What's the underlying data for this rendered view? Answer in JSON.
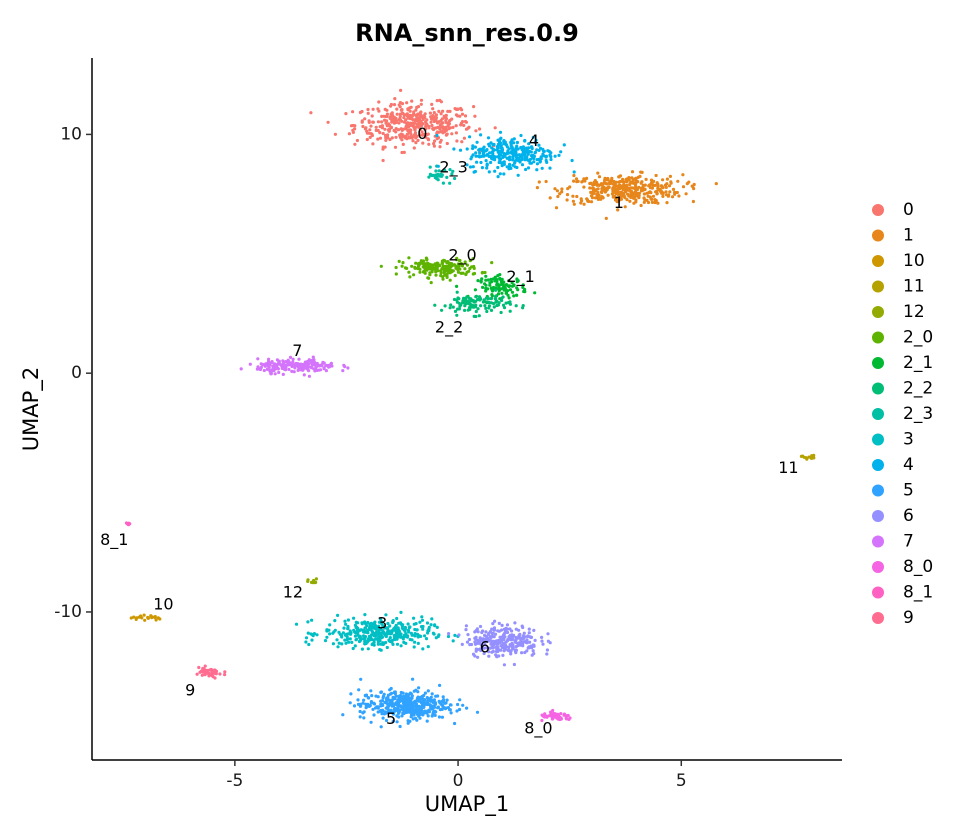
{
  "chart_data": {
    "type": "scatter",
    "title": "RNA_snn_res.0.9",
    "xlabel": "UMAP_1",
    "ylabel": "UMAP_2",
    "xlim": [
      -8.2,
      8.6
    ],
    "ylim": [
      -16.2,
      13.2
    ],
    "x_ticks": [
      -5,
      0,
      5
    ],
    "y_ticks": [
      -10,
      0,
      10
    ],
    "x_tick_labels": [
      "-5",
      "0",
      "5"
    ],
    "y_tick_labels": [
      "-10",
      "0",
      "10"
    ],
    "grid": false,
    "legend_position": "right",
    "series": [
      {
        "name": "0",
        "color": "#F8766D",
        "center": [
          -1.0,
          10.4
        ],
        "spread": [
          1.2,
          0.8
        ],
        "n": 420
      },
      {
        "name": "1",
        "color": "#E7861B",
        "center": [
          3.7,
          7.7
        ],
        "spread": [
          1.2,
          0.55
        ],
        "n": 380
      },
      {
        "name": "10",
        "color": "#CE9700",
        "center": [
          -7.0,
          -10.25
        ],
        "spread": [
          0.3,
          0.12
        ],
        "n": 20
      },
      {
        "name": "11",
        "color": "#B5A200",
        "center": [
          7.85,
          -3.5
        ],
        "spread": [
          0.15,
          0.08
        ],
        "n": 12
      },
      {
        "name": "12",
        "color": "#93AA00",
        "center": [
          -3.25,
          -8.75
        ],
        "spread": [
          0.1,
          0.12
        ],
        "n": 10
      },
      {
        "name": "2_0",
        "color": "#5EB300",
        "center": [
          -0.4,
          4.4
        ],
        "spread": [
          0.8,
          0.35
        ],
        "n": 180
      },
      {
        "name": "2_1",
        "color": "#00B933",
        "center": [
          1.0,
          3.6
        ],
        "spread": [
          0.5,
          0.4
        ],
        "n": 110
      },
      {
        "name": "2_2",
        "color": "#00BD76",
        "center": [
          0.4,
          2.9
        ],
        "spread": [
          0.7,
          0.4
        ],
        "n": 110
      },
      {
        "name": "2_3",
        "color": "#00BFA4",
        "center": [
          -0.4,
          8.3
        ],
        "spread": [
          0.35,
          0.25
        ],
        "n": 30
      },
      {
        "name": "3",
        "color": "#00BFC4",
        "center": [
          -1.8,
          -10.9
        ],
        "spread": [
          1.1,
          0.55
        ],
        "n": 360
      },
      {
        "name": "4",
        "color": "#00B2EB",
        "center": [
          1.2,
          9.2
        ],
        "spread": [
          0.9,
          0.65
        ],
        "n": 300
      },
      {
        "name": "5",
        "color": "#30A2FF",
        "center": [
          -1.2,
          -13.9
        ],
        "spread": [
          0.9,
          0.55
        ],
        "n": 420
      },
      {
        "name": "6",
        "color": "#9590FF",
        "center": [
          1.0,
          -11.2
        ],
        "spread": [
          0.75,
          0.6
        ],
        "n": 270
      },
      {
        "name": "7",
        "color": "#D474FC",
        "center": [
          -3.6,
          0.3
        ],
        "spread": [
          0.8,
          0.25
        ],
        "n": 200
      },
      {
        "name": "8_0",
        "color": "#F564E3",
        "center": [
          2.2,
          -14.4
        ],
        "spread": [
          0.35,
          0.15
        ],
        "n": 50
      },
      {
        "name": "8_1",
        "color": "#FF61C3",
        "center": [
          -7.35,
          -6.3
        ],
        "spread": [
          0.08,
          0.06
        ],
        "n": 6
      },
      {
        "name": "9",
        "color": "#FF6C90",
        "center": [
          -5.6,
          -12.55
        ],
        "spread": [
          0.3,
          0.2
        ],
        "n": 45
      }
    ],
    "cluster_labels": [
      {
        "text": "0",
        "x": -0.8,
        "y": 10.0
      },
      {
        "text": "1",
        "x": 3.6,
        "y": 7.1
      },
      {
        "text": "10",
        "x": -6.6,
        "y": -9.7
      },
      {
        "text": "11",
        "x": 7.4,
        "y": -4.0
      },
      {
        "text": "12",
        "x": -3.7,
        "y": -9.2
      },
      {
        "text": "2_0",
        "x": 0.1,
        "y": 4.9
      },
      {
        "text": "2_1",
        "x": 1.4,
        "y": 4.0
      },
      {
        "text": "2_2",
        "x": -0.2,
        "y": 1.9
      },
      {
        "text": "2_3",
        "x": -0.1,
        "y": 8.6
      },
      {
        "text": "3",
        "x": -1.7,
        "y": -10.5
      },
      {
        "text": "4",
        "x": 1.7,
        "y": 9.7
      },
      {
        "text": "5",
        "x": -1.5,
        "y": -14.5
      },
      {
        "text": "6",
        "x": 0.6,
        "y": -11.5
      },
      {
        "text": "7",
        "x": -3.6,
        "y": 0.9
      },
      {
        "text": "8_0",
        "x": 1.8,
        "y": -14.9
      },
      {
        "text": "8_1",
        "x": -7.7,
        "y": -7.0
      },
      {
        "text": "9",
        "x": -6.0,
        "y": -13.3
      }
    ]
  }
}
